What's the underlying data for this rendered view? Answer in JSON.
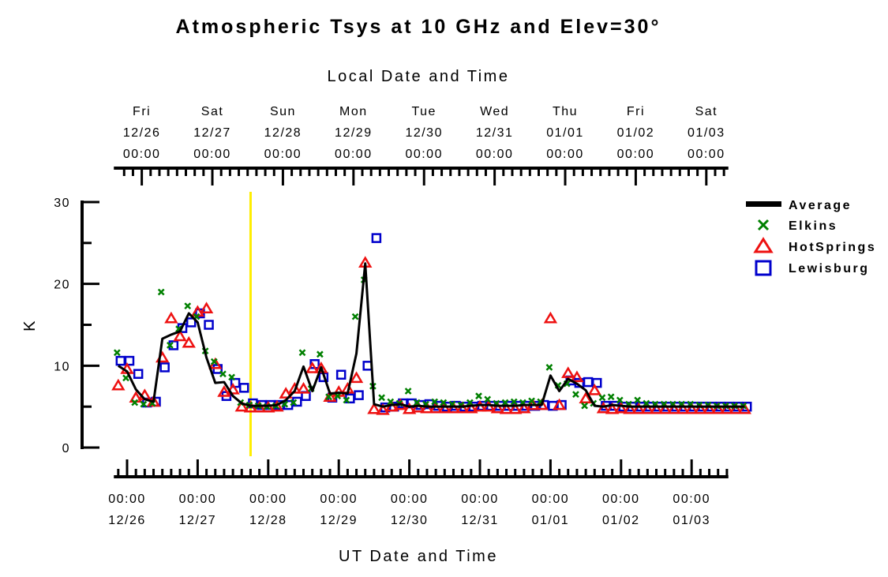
{
  "chart_data": {
    "type": "line",
    "title": "Atmospheric Tsys at 10 GHz and Elev=30°",
    "top_axis_title": "Local Date and Time",
    "xlabel": "UT Date and Time",
    "ylabel": "K",
    "ylim": [
      0,
      30
    ],
    "y_ticks": [
      "0",
      "10",
      "20",
      "30"
    ],
    "x_unit": "hours since 12/26 00:00 UT",
    "x_step_hours": 3,
    "x_start_hours": -3,
    "top_ticks": [
      {
        "day": "Fri",
        "date": "12/26",
        "time": "00:00"
      },
      {
        "day": "Sat",
        "date": "12/27",
        "time": "00:00"
      },
      {
        "day": "Sun",
        "date": "12/28",
        "time": "00:00"
      },
      {
        "day": "Mon",
        "date": "12/29",
        "time": "00:00"
      },
      {
        "day": "Tue",
        "date": "12/30",
        "time": "00:00"
      },
      {
        "day": "Wed",
        "date": "12/31",
        "time": "00:00"
      },
      {
        "day": "Thu",
        "date": "01/01",
        "time": "00:00"
      },
      {
        "day": "Fri",
        "date": "01/02",
        "time": "00:00"
      },
      {
        "day": "Sat",
        "date": "01/03",
        "time": "00:00"
      }
    ],
    "bottom_ticks": [
      {
        "time": "00:00",
        "date": "12/26"
      },
      {
        "time": "00:00",
        "date": "12/27"
      },
      {
        "time": "00:00",
        "date": "12/28"
      },
      {
        "time": "00:00",
        "date": "12/29"
      },
      {
        "time": "00:00",
        "date": "12/30"
      },
      {
        "time": "00:00",
        "date": "12/31"
      },
      {
        "time": "00:00",
        "date": "01/01"
      },
      {
        "time": "00:00",
        "date": "01/02"
      },
      {
        "time": "00:00",
        "date": "01/03"
      }
    ],
    "current_time_marker_hours": 42,
    "legend_position": "right",
    "series": [
      {
        "name": "Average",
        "color": "#000000",
        "marker": "line",
        "values": [
          10.0,
          9.3,
          7.1,
          5.9,
          5.6,
          13.3,
          13.8,
          14.2,
          16.4,
          15.3,
          11.0,
          7.9,
          8.0,
          6.3,
          5.4,
          5.1,
          5.1,
          5.1,
          5.2,
          5.8,
          6.9,
          9.9,
          6.9,
          9.8,
          6.6,
          6.7,
          6.6,
          11.5,
          22.5,
          5.3,
          5.0,
          5.2,
          5.3,
          5.0,
          5.1,
          5.0,
          5.0,
          5.0,
          5.0,
          5.0,
          5.1,
          5.2,
          5.2,
          5.1,
          5.1,
          5.1,
          5.2,
          5.2,
          5.2,
          8.8,
          6.9,
          8.4,
          7.8,
          7.0,
          5.1,
          5.0,
          5.2,
          5.1,
          5.0,
          5.0,
          5.0,
          5.0,
          5.0,
          5.0,
          5.0,
          5.0,
          5.0,
          5.0,
          5.0,
          5.0,
          5.0,
          5.0
        ]
      },
      {
        "name": "Elkins",
        "color": "#008000",
        "marker": "x",
        "values": [
          11.6,
          8.5,
          5.5,
          5.3,
          5.4,
          19.0,
          12.5,
          14.5,
          17.3,
          16.0,
          11.8,
          10.5,
          9.0,
          8.6,
          5.5,
          5.2,
          5.1,
          5.0,
          5.1,
          5.3,
          5.5,
          11.6,
          7.2,
          11.4,
          6.2,
          6.3,
          5.8,
          16.0,
          20.5,
          7.5,
          6.1,
          5.6,
          5.4,
          6.9,
          5.5,
          5.3,
          5.6,
          5.5,
          5.3,
          5.2,
          5.5,
          6.3,
          5.9,
          5.4,
          5.5,
          5.6,
          5.5,
          5.7,
          5.6,
          9.8,
          7.6,
          7.8,
          6.5,
          5.1,
          5.4,
          6.1,
          6.2,
          5.8,
          5.3,
          5.8,
          5.4,
          5.3,
          5.3,
          5.3,
          5.3,
          5.3,
          5.2,
          5.2,
          5.1,
          5.1,
          5.1,
          5.1
        ]
      },
      {
        "name": "HotSprings",
        "color": "#ee1111",
        "marker": "triangle",
        "values": [
          7.6,
          9.6,
          6.1,
          6.4,
          5.6,
          11.0,
          15.8,
          13.6,
          12.8,
          16.6,
          17.0,
          10.2,
          6.8,
          7.1,
          5.0,
          4.9,
          4.9,
          4.9,
          5.0,
          6.6,
          7.2,
          7.2,
          9.7,
          9.7,
          6.2,
          6.8,
          7.2,
          8.5,
          22.6,
          4.7,
          4.6,
          5.0,
          5.2,
          4.7,
          4.9,
          4.8,
          4.8,
          4.8,
          4.8,
          4.8,
          4.8,
          5.0,
          5.0,
          4.8,
          4.7,
          4.7,
          4.8,
          5.2,
          5.2,
          15.8,
          5.2,
          9.1,
          8.6,
          6.0,
          7.0,
          4.8,
          4.7,
          4.8,
          4.7,
          4.7,
          4.7,
          4.7,
          4.7,
          4.7,
          4.7,
          4.7,
          4.7,
          4.7,
          4.7,
          4.7,
          4.7,
          4.7
        ]
      },
      {
        "name": "Lewisburg",
        "color": "#0000cc",
        "marker": "square",
        "values": [
          10.6,
          10.6,
          9.0,
          5.5,
          5.6,
          9.8,
          12.5,
          14.6,
          15.3,
          16.4,
          15.0,
          9.6,
          6.3,
          7.9,
          7.3,
          5.4,
          5.2,
          5.2,
          5.2,
          5.2,
          5.6,
          6.3,
          10.2,
          8.6,
          6.1,
          8.9,
          6.0,
          6.4,
          10.0,
          25.6,
          4.9,
          5.0,
          5.4,
          5.4,
          5.2,
          5.3,
          5.1,
          5.0,
          5.1,
          5.0,
          5.0,
          5.1,
          5.1,
          5.1,
          5.1,
          5.1,
          5.1,
          5.1,
          5.2,
          5.1,
          5.2,
          8.2,
          7.9,
          8.0,
          7.9,
          5.1,
          5.1,
          5.0,
          5.0,
          5.0,
          5.0,
          5.0,
          5.0,
          5.0,
          5.0,
          5.0,
          5.0,
          5.0,
          5.0,
          5.0,
          5.0,
          5.0
        ]
      }
    ]
  }
}
